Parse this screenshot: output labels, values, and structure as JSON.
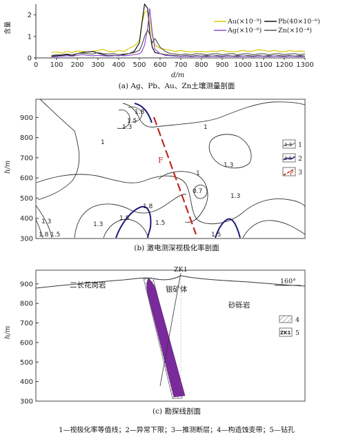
{
  "panel_a": {
    "caption": "(a) Ag、Pb、Au、Zn土壤测量剖面",
    "ylabel": "含量",
    "xlabel": "d/m",
    "legend": [
      {
        "label": "Au(×10⁻⁹)",
        "color": "#d8c800"
      },
      {
        "label": "Pb(40×10⁻⁶)",
        "color": "#111111"
      },
      {
        "label": "Ag(×10⁻⁶)",
        "color": "#8a4fd0"
      },
      {
        "label": "Zn(×10⁻⁴)",
        "color": "#555555"
      }
    ]
  },
  "panel_b": {
    "caption": "(b) 激电测深视极化率剖面",
    "ylabel": "h/m",
    "fault_label": "F",
    "legend": [
      {
        "num": "1",
        "sym": "1.3"
      },
      {
        "num": "2",
        "sym": "1.5"
      },
      {
        "num": "3",
        "sym": "F"
      }
    ],
    "contour_labels": [
      "1.8",
      "1.5",
      "1.3",
      "1",
      "1",
      "1.3",
      "1",
      "1.3",
      "0.7",
      "1.8",
      "1.8",
      "1.3",
      "1.5",
      "1.3",
      "1.8",
      "1.5",
      "1.5"
    ]
  },
  "panel_c": {
    "caption": "(c) 勘探线剖面",
    "ylabel": "h/m",
    "yticks": [
      "900",
      "800",
      "700",
      "600",
      "500",
      "400",
      "300"
    ],
    "labels": {
      "granite": "二长花岗岩",
      "ore": "银矿体",
      "sandstone": "砂砾岩",
      "drill": "ZK1",
      "azimuth": "160°"
    },
    "legend": [
      {
        "num": "4",
        "sym": "hatch"
      },
      {
        "num": "5",
        "sym": "ZK1"
      }
    ]
  },
  "footnote": "1—视极化率等值线；2—异常下限；3—推测断层；4—构造蚀变带；5—钻孔",
  "chart_data": [
    {
      "type": "line",
      "title": "(a) Ag、Pb、Au、Zn土壤测量剖面",
      "xlabel": "d/m",
      "ylabel": "含量",
      "xlim": [
        0,
        1300
      ],
      "ylim": [
        0,
        2.5
      ],
      "x_ticks": [
        0,
        100,
        200,
        300,
        400,
        500,
        600,
        700,
        800,
        900,
        1000,
        1100,
        1200,
        1300
      ],
      "y_ticks": [
        0,
        1,
        2
      ],
      "series": [
        {
          "name": "Au(×10⁻⁹)",
          "x": [
            75,
            100,
            125,
            150,
            175,
            200,
            225,
            250,
            275,
            300,
            325,
            350,
            375,
            400,
            425,
            450,
            475,
            500,
            512,
            525,
            540,
            550,
            562,
            575,
            600,
            625,
            650,
            675,
            700,
            725,
            750,
            775,
            800,
            825,
            850,
            875,
            900,
            925,
            950,
            975,
            1000,
            1025,
            1050,
            1075,
            1100,
            1125,
            1150,
            1175,
            1200,
            1225,
            1250,
            1275,
            1300
          ],
          "y": [
            0.25,
            0.28,
            0.22,
            0.3,
            0.25,
            0.32,
            0.3,
            0.27,
            0.3,
            0.35,
            0.4,
            0.3,
            0.28,
            0.35,
            0.3,
            0.45,
            0.55,
            0.8,
            1.6,
            2.1,
            2.2,
            1.8,
            1.0,
            0.6,
            0.45,
            0.4,
            0.35,
            0.3,
            0.35,
            0.3,
            0.28,
            0.3,
            0.3,
            0.28,
            0.32,
            0.3,
            0.35,
            0.3,
            0.28,
            0.3,
            0.35,
            0.3,
            0.32,
            0.38,
            0.35,
            0.3,
            0.35,
            0.3,
            0.28,
            0.35,
            0.3,
            0.32,
            0.3
          ]
        },
        {
          "name": "Pb(40×10⁻⁶)",
          "x": [
            75,
            100,
            125,
            150,
            175,
            200,
            225,
            250,
            275,
            300,
            325,
            350,
            375,
            400,
            425,
            450,
            475,
            500,
            512,
            525,
            540,
            550,
            562,
            575,
            600,
            625,
            650,
            675,
            700,
            725,
            750,
            775,
            800,
            825,
            850,
            875,
            900,
            925,
            950,
            975,
            1000,
            1025,
            1050,
            1075,
            1100,
            1125,
            1150,
            1175,
            1200,
            1225,
            1250,
            1275,
            1300
          ],
          "y": [
            0.08,
            0.1,
            0.12,
            0.15,
            0.1,
            0.2,
            0.25,
            0.28,
            0.3,
            0.22,
            0.15,
            0.1,
            0.12,
            0.1,
            0.15,
            0.2,
            0.3,
            0.7,
            1.6,
            2.5,
            2.3,
            1.2,
            0.5,
            0.25,
            0.2,
            0.15,
            0.12,
            0.1,
            0.08,
            0.1,
            0.08,
            0.1,
            0.08,
            0.1,
            0.08,
            0.1,
            0.08,
            0.1,
            0.08,
            0.1,
            0.08,
            0.1,
            0.08,
            0.1,
            0.08,
            0.1,
            0.08,
            0.1,
            0.08,
            0.1,
            0.08,
            0.1,
            0.08
          ]
        },
        {
          "name": "Ag(×10⁻⁶)",
          "x": [
            75,
            100,
            125,
            150,
            175,
            200,
            225,
            250,
            275,
            300,
            325,
            350,
            375,
            400,
            425,
            450,
            475,
            500,
            512,
            525,
            540,
            550,
            562,
            575,
            600,
            625,
            650,
            675,
            700,
            725,
            750,
            775,
            800,
            825,
            850,
            875,
            900,
            925,
            950,
            975,
            1000,
            1025,
            1050,
            1075,
            1100,
            1125,
            1150,
            1175,
            1200,
            1225,
            1250,
            1275,
            1300
          ],
          "y": [
            0.05,
            0.06,
            0.08,
            0.1,
            0.08,
            0.12,
            0.15,
            0.12,
            0.1,
            0.12,
            0.1,
            0.08,
            0.1,
            0.12,
            0.1,
            0.12,
            0.15,
            0.2,
            0.3,
            0.6,
            1.4,
            2.3,
            1.2,
            0.4,
            0.2,
            0.12,
            0.1,
            0.08,
            0.07,
            0.08,
            0.06,
            0.08,
            0.07,
            0.06,
            0.08,
            0.07,
            0.06,
            0.08,
            0.07,
            0.06,
            0.08,
            0.07,
            0.06,
            0.08,
            0.07,
            0.06,
            0.08,
            0.07,
            0.06,
            0.08,
            0.07,
            0.06,
            0.07
          ]
        },
        {
          "name": "Zn(×10⁻⁴)",
          "x": [
            75,
            100,
            125,
            150,
            175,
            200,
            225,
            250,
            275,
            300,
            325,
            350,
            375,
            400,
            425,
            450,
            475,
            500,
            512,
            525,
            540,
            550,
            562,
            575,
            600,
            625,
            650,
            675,
            700,
            725,
            750,
            775,
            800,
            825,
            850,
            875,
            900,
            925,
            950,
            975,
            1000,
            1025,
            1050,
            1075,
            1100,
            1125,
            1150,
            1175,
            1200,
            1225,
            1250,
            1275,
            1300
          ],
          "y": [
            0.12,
            0.14,
            0.15,
            0.18,
            0.15,
            0.2,
            0.22,
            0.2,
            0.18,
            0.25,
            0.2,
            0.18,
            0.2,
            0.15,
            0.18,
            0.2,
            0.25,
            0.35,
            0.6,
            1.0,
            1.3,
            1.1,
            0.7,
            0.9,
            0.5,
            0.3,
            0.2,
            0.18,
            0.15,
            0.18,
            0.15,
            0.2,
            0.18,
            0.15,
            0.18,
            0.2,
            0.15,
            0.18,
            0.2,
            0.15,
            0.18,
            0.2,
            0.15,
            0.18,
            0.2,
            0.15,
            0.18,
            0.2,
            0.15,
            0.18,
            0.2,
            0.15,
            0.18
          ]
        }
      ]
    },
    {
      "type": "contour",
      "title": "(b) 激电测深视极化率剖面",
      "ylabel": "h/m",
      "y_ticks": [
        900,
        800,
        700,
        600,
        500,
        400,
        300
      ],
      "ylim": [
        300,
        990
      ]
    }
  ]
}
